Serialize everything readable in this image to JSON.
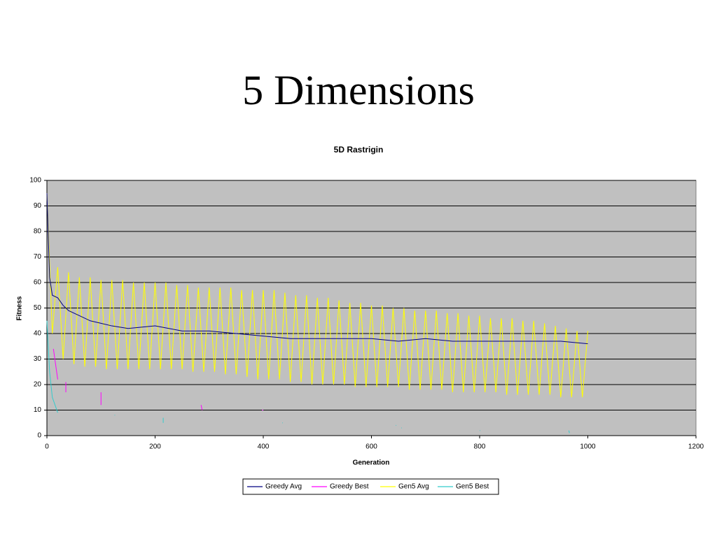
{
  "slide": {
    "title": "5 Dimensions"
  },
  "chart_data": {
    "type": "line",
    "title": "5D Rastrigin",
    "x_label": "Generation",
    "y_label": "Fitness",
    "xlim": [
      0,
      1200
    ],
    "xticks": [
      0,
      200,
      400,
      600,
      800,
      1000,
      1200
    ],
    "ylim": [
      0,
      100
    ],
    "yticks": [
      0,
      10,
      20,
      30,
      40,
      50,
      60,
      70,
      80,
      90,
      100
    ],
    "grid": true,
    "legend": "bottom",
    "plot_background": "#c0c0c0",
    "series": [
      {
        "name": "Greedy Avg",
        "color": "#000080",
        "x": [
          0,
          5,
          10,
          20,
          30,
          40,
          60,
          80,
          100,
          120,
          150,
          200,
          250,
          300,
          350,
          400,
          450,
          500,
          550,
          600,
          650,
          700,
          750,
          800,
          850,
          900,
          950,
          1000
        ],
        "values": [
          95,
          62,
          55,
          54,
          51,
          49,
          47,
          45,
          44,
          43,
          42,
          43,
          41,
          41,
          40,
          39,
          38,
          38,
          38,
          38,
          37,
          38,
          37,
          37,
          37,
          37,
          37,
          36
        ]
      },
      {
        "name": "Greedy Best",
        "color": "#ff00ff",
        "x": [
          12,
          16,
          20,
          21,
          35,
          35,
          36,
          100,
          100,
          101,
          285,
          287,
          288,
          398,
          400
        ],
        "values": [
          34,
          28,
          22,
          null,
          21,
          17,
          null,
          17,
          12,
          null,
          12,
          10,
          null,
          10,
          10
        ]
      },
      {
        "name": "Gen5 Avg",
        "color": "#ffff00",
        "x": [
          0,
          10,
          20,
          30,
          40,
          50,
          60,
          70,
          80,
          90,
          100,
          110,
          120,
          130,
          140,
          150,
          160,
          170,
          180,
          190,
          200,
          210,
          220,
          230,
          240,
          250,
          260,
          270,
          280,
          290,
          300,
          310,
          320,
          330,
          340,
          350,
          360,
          370,
          380,
          390,
          400,
          410,
          420,
          430,
          440,
          450,
          460,
          470,
          480,
          490,
          500,
          510,
          520,
          530,
          540,
          550,
          560,
          570,
          580,
          590,
          600,
          610,
          620,
          630,
          640,
          650,
          660,
          670,
          680,
          690,
          700,
          710,
          720,
          730,
          740,
          750,
          760,
          770,
          780,
          790,
          800,
          810,
          820,
          830,
          840,
          850,
          860,
          870,
          880,
          890,
          900,
          910,
          920,
          930,
          940,
          950,
          960,
          970,
          980,
          990,
          1000
        ],
        "values": [
          95,
          40,
          66,
          30,
          64,
          28,
          62,
          27,
          62,
          27,
          61,
          26,
          61,
          26,
          61,
          26,
          60,
          26,
          60,
          26,
          60,
          26,
          60,
          26,
          59,
          26,
          59,
          25,
          58,
          25,
          58,
          25,
          58,
          24,
          58,
          24,
          57,
          23,
          57,
          22,
          57,
          22,
          57,
          22,
          56,
          21,
          55,
          21,
          55,
          20,
          54,
          20,
          54,
          20,
          53,
          20,
          52,
          19,
          52,
          19,
          51,
          19,
          51,
          19,
          50,
          19,
          50,
          18,
          49,
          18,
          49,
          18,
          49,
          18,
          48,
          17,
          48,
          17,
          47,
          17,
          47,
          17,
          46,
          17,
          46,
          16,
          46,
          16,
          45,
          16,
          45,
          16,
          44,
          16,
          43,
          15,
          42,
          15,
          41,
          15,
          41
        ]
      },
      {
        "name": "Gen5 Best",
        "color": "#33cccc",
        "x": [
          0,
          5,
          10,
          15,
          20,
          21,
          125,
          126,
          127,
          215,
          215,
          216,
          435,
          436,
          437,
          645,
          646,
          647,
          655,
          656,
          657,
          800,
          801,
          802,
          965,
          966
        ],
        "values": [
          45,
          25,
          15,
          12,
          9,
          null,
          8,
          8,
          null,
          7,
          5,
          null,
          5,
          5,
          null,
          4,
          4,
          null,
          3,
          3,
          null,
          2,
          2,
          null,
          2,
          1
        ]
      }
    ]
  }
}
